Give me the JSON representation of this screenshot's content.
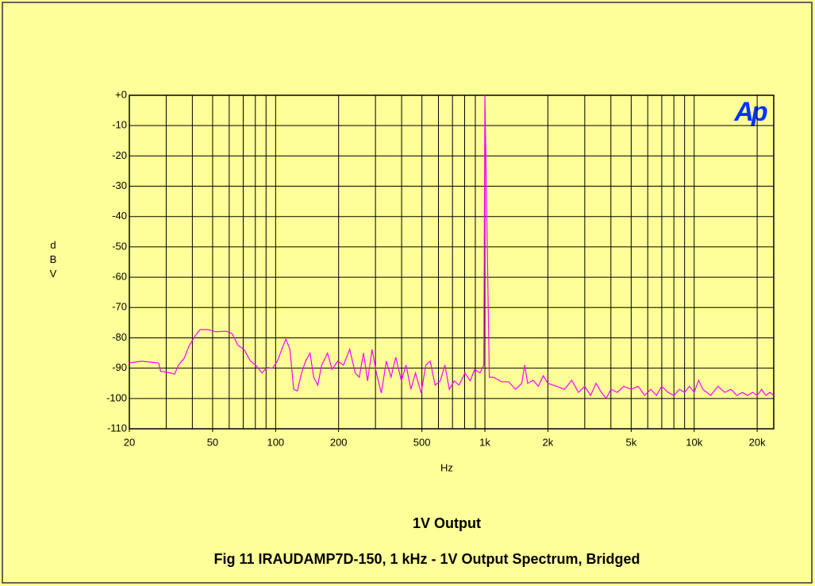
{
  "chart_data": {
    "type": "line",
    "title": "Fig 11 IRAUDAMP7D-150, 1 kHz - 1V Output Spectrum, Bridged",
    "logo": "Ap",
    "xlabel": "Hz",
    "ylabel": "dBV",
    "xscale": "log",
    "grid": true,
    "xlim": [
      20,
      24000
    ],
    "ylim": [
      -110,
      0
    ],
    "xticks": [
      20,
      50,
      100,
      200,
      500,
      {
        "value": 1000,
        "label": "1k"
      },
      {
        "value": 2000,
        "label": "2k"
      },
      {
        "value": 5000,
        "label": "5k"
      },
      {
        "value": 10000,
        "label": "10k"
      },
      {
        "value": 20000,
        "label": "20k"
      }
    ],
    "xgrid": [
      30,
      40,
      50,
      60,
      70,
      80,
      90,
      100,
      200,
      300,
      400,
      500,
      600,
      700,
      800,
      900,
      1000,
      2000,
      3000,
      4000,
      5000,
      6000,
      7000,
      8000,
      9000,
      10000,
      20000
    ],
    "yticks": [
      {
        "value": 0,
        "label": "+0"
      },
      -10,
      -20,
      -30,
      -40,
      -50,
      -60,
      -70,
      -80,
      -90,
      -100,
      -110
    ],
    "x": [
      20,
      22.9,
      27.6,
      28.2,
      31.6,
      32.9,
      34.3,
      36.6,
      38.5,
      41,
      43.6,
      47.5,
      51.8,
      58,
      61.9,
      66.1,
      70.6,
      75.8,
      80.4,
      86,
      90.8,
      96.7,
      102,
      107,
      112,
      117,
      122,
      127,
      133,
      139,
      146,
      152,
      159,
      166,
      177,
      186,
      198,
      211,
      226,
      240,
      251,
      263,
      275,
      289,
      303,
      320,
      338,
      356,
      375,
      399,
      420,
      443,
      466,
      496,
      522,
      548,
      578,
      612,
      644,
      676,
      714,
      752,
      803,
      851,
      894,
      947,
      988,
      1000,
      1050,
      1100,
      1200,
      1300,
      1400,
      1500,
      1550,
      1600,
      1700,
      1800,
      1900,
      2000,
      2200,
      2400,
      2600,
      2800,
      3000,
      3200,
      3400,
      3600,
      3800,
      4000,
      4300,
      4600,
      5000,
      5400,
      5800,
      6200,
      6600,
      7000,
      7500,
      8000,
      8500,
      9000,
      9500,
      10000,
      10500,
      11000,
      12000,
      13000,
      14000,
      15000,
      16000,
      17000,
      18000,
      19000,
      20000,
      21000,
      22000,
      23000,
      24000
    ],
    "series": [
      {
        "name": "1V Output",
        "color": "#ff00ff",
        "values": [
          -88.3,
          -87.7,
          -88.3,
          -91,
          -91.6,
          -92,
          -89,
          -86.7,
          -82.8,
          -79.6,
          -77.3,
          -77.3,
          -78,
          -77.8,
          -78.6,
          -82.5,
          -83.8,
          -87.7,
          -89,
          -91.6,
          -89.8,
          -90,
          -87.7,
          -83.8,
          -80.4,
          -83.8,
          -97,
          -97.5,
          -91.6,
          -87.7,
          -85,
          -93,
          -95.6,
          -89,
          -85,
          -90.4,
          -87.7,
          -89,
          -83.8,
          -91.6,
          -93,
          -85,
          -94.2,
          -83.8,
          -91.6,
          -98.2,
          -87.7,
          -93,
          -86.4,
          -94.2,
          -89,
          -97,
          -91.6,
          -98.2,
          -89,
          -87.7,
          -95.6,
          -94.2,
          -89,
          -97,
          -94.2,
          -95.6,
          -91.6,
          -94.2,
          -90.4,
          -91.6,
          -89,
          0,
          -93,
          -93,
          -94.5,
          -94.5,
          -97,
          -95,
          -89,
          -95,
          -94,
          -96,
          -92.5,
          -95,
          -96,
          -97,
          -94,
          -98,
          -96,
          -99,
          -95,
          -98,
          -100,
          -97,
          -98,
          -96,
          -97,
          -96,
          -99,
          -97,
          -99,
          -96,
          -98,
          -99,
          -97,
          -98,
          -96,
          -98,
          -94,
          -97,
          -99,
          -96,
          -98,
          -97,
          -99,
          -98,
          -99,
          -98,
          -99,
          -97,
          -99,
          -98,
          -99
        ]
      }
    ]
  }
}
